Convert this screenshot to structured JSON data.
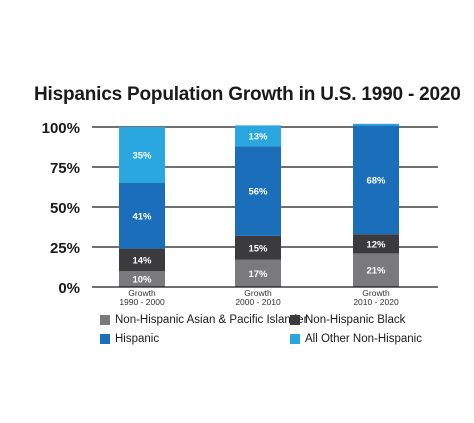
{
  "chart_data": {
    "type": "bar",
    "stacked": true,
    "title": "Hispanics Population Growth in U.S. 1990 - 2020",
    "xlabel": "",
    "ylabel": "",
    "ylim": [
      0,
      100
    ],
    "y_ticks": [
      "0%",
      "25%",
      "50%",
      "75%",
      "100%"
    ],
    "y_tick_values": [
      0,
      25,
      50,
      75,
      100
    ],
    "grid": true,
    "legend_position": "bottom",
    "categories": [
      [
        "Growth",
        "1990 - 2000"
      ],
      [
        "Growth",
        "2000 - 2010"
      ],
      [
        "Growth",
        "2010 - 2020"
      ]
    ],
    "series": [
      {
        "name": "Non-Hispanic Asian & Pacific Islander",
        "color": "#7a7a7c",
        "values": [
          10,
          17,
          21
        ],
        "labels": [
          "10%",
          "17%",
          "21%"
        ]
      },
      {
        "name": "Non-Hispanic Black",
        "color": "#3b3b3d",
        "values": [
          14,
          15,
          12
        ],
        "labels": [
          "14%",
          "15%",
          "12%"
        ]
      },
      {
        "name": "Hispanic",
        "color": "#1b6fba",
        "values": [
          41,
          56,
          68
        ],
        "labels": [
          "41%",
          "56%",
          "68%"
        ]
      },
      {
        "name": "All Other Non-Hispanic",
        "color": "#2aa7df",
        "values": [
          35,
          13,
          1
        ],
        "labels": [
          "35%",
          "13%",
          ""
        ]
      }
    ]
  }
}
